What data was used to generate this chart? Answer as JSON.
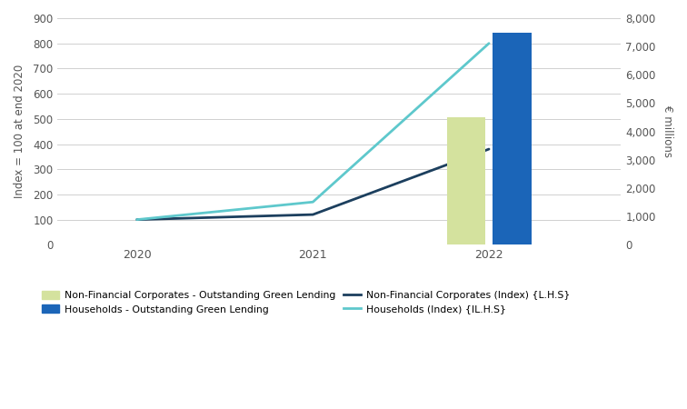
{
  "years": [
    2020,
    2021,
    2022
  ],
  "nfc_index": [
    100,
    120,
    380
  ],
  "hh_index": [
    100,
    170,
    800
  ],
  "nfc_bar_value": 4500,
  "hh_bar_value": 7500,
  "left_ylim": [
    0,
    900
  ],
  "left_yticks": [
    0,
    100,
    200,
    300,
    400,
    500,
    600,
    700,
    800,
    900
  ],
  "right_ylim": [
    0,
    8000
  ],
  "right_yticks": [
    0,
    1000,
    2000,
    3000,
    4000,
    5000,
    6000,
    7000,
    8000
  ],
  "nfc_line_color": "#1c3f5e",
  "hh_line_color": "#5ec8cc",
  "nfc_bar_color": "#d4e29e",
  "hh_bar_color": "#1b65b8",
  "left_ylabel": "Index = 100 at end 2020",
  "right_ylabel": "€ millions",
  "legend_nfc_bar": "Non-Financial Corporates - Outstanding Green Lending",
  "legend_hh_bar": "Households - Outstanding Green Lending",
  "legend_nfc_line": "Non-Financial Corporates (Index) {L.H.S}",
  "legend_hh_line": "Households (Index) {IL.H.S}",
  "bg_color": "#ffffff",
  "grid_color": "#d0d0d0",
  "bar_width": 0.22,
  "bar_gap": 0.04
}
